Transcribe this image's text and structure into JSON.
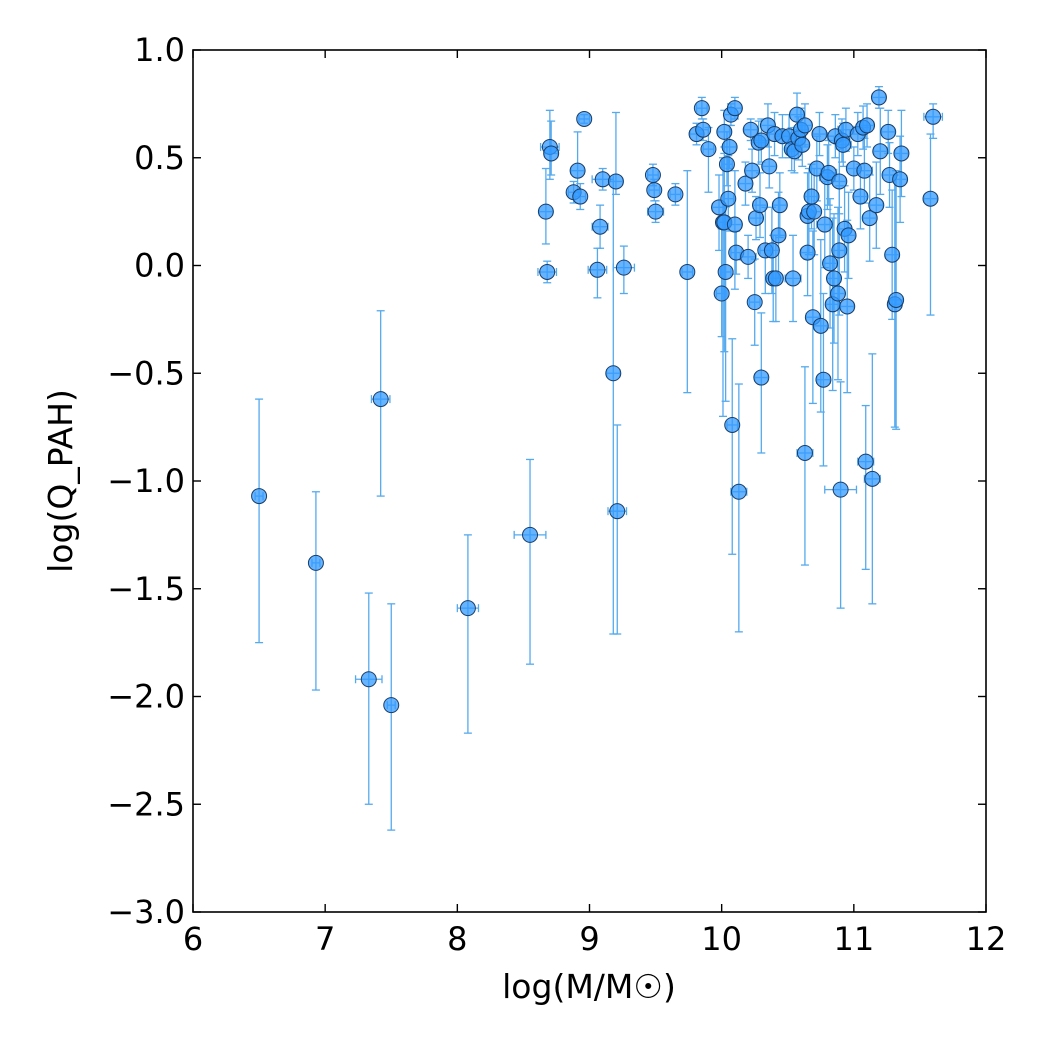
{
  "chart_data": {
    "type": "scatter",
    "xlabel": "log(M/M☉)",
    "ylabel": "log(Q_PAH)",
    "xlim": [
      6,
      12
    ],
    "ylim": [
      -3.0,
      1.0
    ],
    "x_ticks": [
      6,
      7,
      8,
      9,
      10,
      11,
      12
    ],
    "x_tick_labels": [
      "6",
      "7",
      "8",
      "9",
      "10",
      "11",
      "12"
    ],
    "y_ticks": [
      -3.0,
      -2.5,
      -2.0,
      -1.5,
      -1.0,
      -0.5,
      0.0,
      0.5,
      1.0
    ],
    "y_tick_labels": [
      "−3.0",
      "−2.5",
      "−2.0",
      "−1.5",
      "−1.0",
      "−0.5",
      "0.0",
      "0.5",
      "1.0"
    ],
    "grid": false,
    "colors": {
      "marker": "#3399ff",
      "errorbar": "#55aaee",
      "edge": "#1a3d66"
    },
    "points": [
      {
        "x": 6.5,
        "y": -1.07,
        "ylo": 0.68,
        "yhi": 0.45,
        "xe": 0.03
      },
      {
        "x": 6.93,
        "y": -1.38,
        "ylo": 0.59,
        "yhi": 0.33,
        "xe": 0.03
      },
      {
        "x": 7.33,
        "y": -1.92,
        "ylo": 0.58,
        "yhi": 0.4,
        "xe": 0.1
      },
      {
        "x": 7.42,
        "y": -0.62,
        "ylo": 0.45,
        "yhi": 0.41,
        "xe": 0.07
      },
      {
        "x": 7.5,
        "y": -2.04,
        "ylo": 0.58,
        "yhi": 0.47,
        "xe": 0.03
      },
      {
        "x": 8.08,
        "y": -1.59,
        "ylo": 0.58,
        "yhi": 0.34,
        "xe": 0.08
      },
      {
        "x": 8.55,
        "y": -1.25,
        "ylo": 0.6,
        "yhi": 0.35,
        "xe": 0.12
      },
      {
        "x": 8.67,
        "y": 0.25,
        "ylo": 0.15,
        "yhi": 0.2,
        "xe": 0.05
      },
      {
        "x": 8.68,
        "y": -0.03,
        "ylo": 0.05,
        "yhi": 0.05,
        "xe": 0.07
      },
      {
        "x": 8.7,
        "y": 0.55,
        "ylo": 0.15,
        "yhi": 0.17,
        "xe": 0.07
      },
      {
        "x": 8.71,
        "y": 0.52,
        "ylo": 0.1,
        "yhi": 0.15,
        "xe": 0.05
      },
      {
        "x": 8.88,
        "y": 0.34,
        "ylo": 0.05,
        "yhi": 0.05,
        "xe": 0.04
      },
      {
        "x": 8.91,
        "y": 0.44,
        "ylo": 0.1,
        "yhi": 0.18,
        "xe": 0.05
      },
      {
        "x": 8.93,
        "y": 0.32,
        "ylo": 0.06,
        "yhi": 0.06,
        "xe": 0.04
      },
      {
        "x": 8.96,
        "y": 0.68,
        "ylo": 0.02,
        "yhi": 0.02,
        "xe": 0.04
      },
      {
        "x": 9.06,
        "y": -0.02,
        "ylo": 0.13,
        "yhi": 0.1,
        "xe": 0.07
      },
      {
        "x": 9.08,
        "y": 0.18,
        "ylo": 0.1,
        "yhi": 0.1,
        "xe": 0.06
      },
      {
        "x": 9.1,
        "y": 0.4,
        "ylo": 0.05,
        "yhi": 0.05,
        "xe": 0.08
      },
      {
        "x": 9.18,
        "y": -0.5,
        "ylo": 1.21,
        "yhi": 0.89,
        "xe": 0.05
      },
      {
        "x": 9.2,
        "y": 0.39,
        "ylo": 0.06,
        "yhi": 0.32,
        "xe": 0.05
      },
      {
        "x": 9.21,
        "y": -1.14,
        "ylo": 0.57,
        "yhi": 0.4,
        "xe": 0.07
      },
      {
        "x": 9.26,
        "y": -0.01,
        "ylo": 0.12,
        "yhi": 0.1,
        "xe": 0.08
      },
      {
        "x": 9.48,
        "y": 0.42,
        "ylo": 0.05,
        "yhi": 0.05,
        "xe": 0.04
      },
      {
        "x": 9.49,
        "y": 0.35,
        "ylo": 0.05,
        "yhi": 0.05,
        "xe": 0.04
      },
      {
        "x": 9.5,
        "y": 0.25,
        "ylo": 0.05,
        "yhi": 0.05,
        "xe": 0.06
      },
      {
        "x": 9.65,
        "y": 0.33,
        "ylo": 0.05,
        "yhi": 0.05,
        "xe": 0.04
      },
      {
        "x": 9.74,
        "y": -0.03,
        "ylo": 0.56,
        "yhi": 0.47,
        "xe": 0.04
      },
      {
        "x": 9.81,
        "y": 0.61,
        "ylo": 0.05,
        "yhi": 0.05,
        "xe": 0.05
      },
      {
        "x": 9.85,
        "y": 0.73,
        "ylo": 0.05,
        "yhi": 0.05,
        "xe": 0.04
      },
      {
        "x": 9.86,
        "y": 0.63,
        "ylo": 0.05,
        "yhi": 0.05,
        "xe": 0.04
      },
      {
        "x": 9.9,
        "y": 0.54,
        "ylo": 0.2,
        "yhi": 0.1,
        "xe": 0.04
      },
      {
        "x": 9.98,
        "y": 0.27,
        "ylo": 0.2,
        "yhi": 0.15,
        "xe": 0.05
      },
      {
        "x": 10.0,
        "y": -0.13,
        "ylo": 0.2,
        "yhi": 0.3,
        "xe": 0.04
      },
      {
        "x": 10.01,
        "y": 0.2,
        "ylo": 0.9,
        "yhi": 0.3,
        "xe": 0.05
      },
      {
        "x": 10.02,
        "y": 0.62,
        "ylo": 0.1,
        "yhi": 0.1,
        "xe": 0.05
      },
      {
        "x": 10.02,
        "y": 0.2,
        "ylo": 0.6,
        "yhi": 0.35,
        "xe": 0.05
      },
      {
        "x": 10.03,
        "y": -0.03,
        "ylo": 0.6,
        "yhi": 0.3,
        "xe": 0.04
      },
      {
        "x": 10.04,
        "y": 0.47,
        "ylo": 0.1,
        "yhi": 0.15,
        "xe": 0.04
      },
      {
        "x": 10.05,
        "y": 0.31,
        "ylo": 0.15,
        "yhi": 0.2,
        "xe": 0.04
      },
      {
        "x": 10.06,
        "y": 0.55,
        "ylo": 0.1,
        "yhi": 0.1,
        "xe": 0.05
      },
      {
        "x": 10.07,
        "y": 0.7,
        "ylo": 0.05,
        "yhi": 0.05,
        "xe": 0.05
      },
      {
        "x": 10.08,
        "y": -0.74,
        "ylo": 0.6,
        "yhi": 0.4,
        "xe": 0.04
      },
      {
        "x": 10.1,
        "y": 0.73,
        "ylo": 0.05,
        "yhi": 0.05,
        "xe": 0.05
      },
      {
        "x": 10.1,
        "y": 0.19,
        "ylo": 0.3,
        "yhi": 0.25,
        "xe": 0.05
      },
      {
        "x": 10.11,
        "y": 0.06,
        "ylo": 0.1,
        "yhi": 0.1,
        "xe": 0.04
      },
      {
        "x": 10.13,
        "y": -1.05,
        "ylo": 0.65,
        "yhi": 0.5,
        "xe": 0.06
      },
      {
        "x": 10.18,
        "y": 0.38,
        "ylo": 0.1,
        "yhi": 0.1,
        "xe": 0.05
      },
      {
        "x": 10.2,
        "y": 0.04,
        "ylo": 0.1,
        "yhi": 0.1,
        "xe": 0.06
      },
      {
        "x": 10.22,
        "y": 0.63,
        "ylo": 0.05,
        "yhi": 0.05,
        "xe": 0.05
      },
      {
        "x": 10.23,
        "y": 0.44,
        "ylo": 0.1,
        "yhi": 0.1,
        "xe": 0.05
      },
      {
        "x": 10.25,
        "y": -0.17,
        "ylo": 0.2,
        "yhi": 0.2,
        "xe": 0.04
      },
      {
        "x": 10.26,
        "y": 0.22,
        "ylo": 0.1,
        "yhi": 0.1,
        "xe": 0.05
      },
      {
        "x": 10.28,
        "y": 0.57,
        "ylo": 0.1,
        "yhi": 0.1,
        "xe": 0.05
      },
      {
        "x": 10.29,
        "y": 0.28,
        "ylo": 0.15,
        "yhi": 0.15,
        "xe": 0.05
      },
      {
        "x": 10.3,
        "y": -0.52,
        "ylo": 0.35,
        "yhi": 0.3,
        "xe": 0.05
      },
      {
        "x": 10.3,
        "y": 0.58,
        "ylo": 0.1,
        "yhi": 0.1,
        "xe": 0.05
      },
      {
        "x": 10.33,
        "y": 0.07,
        "ylo": 0.2,
        "yhi": 0.2,
        "xe": 0.04
      },
      {
        "x": 10.35,
        "y": 0.65,
        "ylo": 0.1,
        "yhi": 0.1,
        "xe": 0.05
      },
      {
        "x": 10.36,
        "y": 0.46,
        "ylo": 0.1,
        "yhi": 0.15,
        "xe": 0.05
      },
      {
        "x": 10.38,
        "y": 0.07,
        "ylo": 0.2,
        "yhi": 0.2,
        "xe": 0.05
      },
      {
        "x": 10.39,
        "y": -0.06,
        "ylo": 0.2,
        "yhi": 0.2,
        "xe": 0.05
      },
      {
        "x": 10.4,
        "y": 0.61,
        "ylo": 0.1,
        "yhi": 0.1,
        "xe": 0.05
      },
      {
        "x": 10.41,
        "y": -0.06,
        "ylo": 0.2,
        "yhi": 0.2,
        "xe": 0.05
      },
      {
        "x": 10.43,
        "y": 0.14,
        "ylo": 0.2,
        "yhi": 0.2,
        "xe": 0.05
      },
      {
        "x": 10.44,
        "y": 0.28,
        "ylo": 0.15,
        "yhi": 0.15,
        "xe": 0.05
      },
      {
        "x": 10.46,
        "y": 0.6,
        "ylo": 0.1,
        "yhi": 0.1,
        "xe": 0.06
      },
      {
        "x": 10.51,
        "y": 0.6,
        "ylo": 0.1,
        "yhi": 0.1,
        "xe": 0.05
      },
      {
        "x": 10.53,
        "y": 0.54,
        "ylo": 0.1,
        "yhi": 0.1,
        "xe": 0.05
      },
      {
        "x": 10.54,
        "y": -0.06,
        "ylo": 0.2,
        "yhi": 0.2,
        "xe": 0.06
      },
      {
        "x": 10.55,
        "y": 0.53,
        "ylo": 0.1,
        "yhi": 0.1,
        "xe": 0.06
      },
      {
        "x": 10.57,
        "y": 0.7,
        "ylo": 0.1,
        "yhi": 0.1,
        "xe": 0.05
      },
      {
        "x": 10.58,
        "y": 0.59,
        "ylo": 0.1,
        "yhi": 0.1,
        "xe": 0.05
      },
      {
        "x": 10.6,
        "y": 0.63,
        "ylo": 0.1,
        "yhi": 0.1,
        "xe": 0.05
      },
      {
        "x": 10.61,
        "y": 0.56,
        "ylo": 0.1,
        "yhi": 0.1,
        "xe": 0.05
      },
      {
        "x": 10.63,
        "y": -0.87,
        "ylo": 0.52,
        "yhi": 0.4,
        "xe": 0.06
      },
      {
        "x": 10.63,
        "y": 0.65,
        "ylo": 0.1,
        "yhi": 0.1,
        "xe": 0.05
      },
      {
        "x": 10.65,
        "y": 0.23,
        "ylo": 0.2,
        "yhi": 0.2,
        "xe": 0.05
      },
      {
        "x": 10.65,
        "y": 0.06,
        "ylo": 0.2,
        "yhi": 0.2,
        "xe": 0.05
      },
      {
        "x": 10.66,
        "y": 0.25,
        "ylo": 0.2,
        "yhi": 0.2,
        "xe": 0.05
      },
      {
        "x": 10.68,
        "y": 0.32,
        "ylo": 0.15,
        "yhi": 0.15,
        "xe": 0.05
      },
      {
        "x": 10.69,
        "y": -0.24,
        "ylo": 0.4,
        "yhi": 0.4,
        "xe": 0.05
      },
      {
        "x": 10.7,
        "y": 0.25,
        "ylo": 0.2,
        "yhi": 0.2,
        "xe": 0.05
      },
      {
        "x": 10.72,
        "y": 0.45,
        "ylo": 0.15,
        "yhi": 0.15,
        "xe": 0.05
      },
      {
        "x": 10.74,
        "y": 0.61,
        "ylo": 0.1,
        "yhi": 0.1,
        "xe": 0.05
      },
      {
        "x": 10.75,
        "y": -0.28,
        "ylo": 0.4,
        "yhi": 0.4,
        "xe": 0.05
      },
      {
        "x": 10.77,
        "y": -0.53,
        "ylo": 0.4,
        "yhi": 0.4,
        "xe": 0.05
      },
      {
        "x": 10.78,
        "y": 0.19,
        "ylo": 0.2,
        "yhi": 0.2,
        "xe": 0.06
      },
      {
        "x": 10.8,
        "y": 0.41,
        "ylo": 0.15,
        "yhi": 0.15,
        "xe": 0.06
      },
      {
        "x": 10.81,
        "y": 0.43,
        "ylo": 0.15,
        "yhi": 0.15,
        "xe": 0.06
      },
      {
        "x": 10.82,
        "y": 0.01,
        "ylo": 0.3,
        "yhi": 0.3,
        "xe": 0.05
      },
      {
        "x": 10.84,
        "y": -0.18,
        "ylo": 0.4,
        "yhi": 0.4,
        "xe": 0.05
      },
      {
        "x": 10.85,
        "y": -0.06,
        "ylo": 0.3,
        "yhi": 0.3,
        "xe": 0.05
      },
      {
        "x": 10.86,
        "y": 0.6,
        "ylo": 0.1,
        "yhi": 0.1,
        "xe": 0.06
      },
      {
        "x": 10.88,
        "y": -0.13,
        "ylo": 0.4,
        "yhi": 0.4,
        "xe": 0.05
      },
      {
        "x": 10.89,
        "y": 0.07,
        "ylo": 0.3,
        "yhi": 0.3,
        "xe": 0.05
      },
      {
        "x": 10.89,
        "y": 0.39,
        "ylo": 0.15,
        "yhi": 0.15,
        "xe": 0.05
      },
      {
        "x": 10.9,
        "y": -1.04,
        "ylo": 0.55,
        "yhi": 0.5,
        "xe": 0.12
      },
      {
        "x": 10.91,
        "y": 0.58,
        "ylo": 0.1,
        "yhi": 0.1,
        "xe": 0.06
      },
      {
        "x": 10.92,
        "y": 0.56,
        "ylo": 0.1,
        "yhi": 0.1,
        "xe": 0.06
      },
      {
        "x": 10.93,
        "y": 0.17,
        "ylo": 0.2,
        "yhi": 0.2,
        "xe": 0.05
      },
      {
        "x": 10.94,
        "y": 0.63,
        "ylo": 0.1,
        "yhi": 0.1,
        "xe": 0.06
      },
      {
        "x": 10.95,
        "y": -0.19,
        "ylo": 0.4,
        "yhi": 0.4,
        "xe": 0.05
      },
      {
        "x": 10.96,
        "y": 0.14,
        "ylo": 0.2,
        "yhi": 0.2,
        "xe": 0.05
      },
      {
        "x": 11.0,
        "y": 0.45,
        "ylo": 0.1,
        "yhi": 0.1,
        "xe": 0.05
      },
      {
        "x": 11.03,
        "y": 0.61,
        "ylo": 0.1,
        "yhi": 0.1,
        "xe": 0.06
      },
      {
        "x": 11.05,
        "y": 0.32,
        "ylo": 0.15,
        "yhi": 0.15,
        "xe": 0.05
      },
      {
        "x": 11.07,
        "y": 0.64,
        "ylo": 0.1,
        "yhi": 0.1,
        "xe": 0.05
      },
      {
        "x": 11.08,
        "y": 0.44,
        "ylo": 0.15,
        "yhi": 0.15,
        "xe": 0.06
      },
      {
        "x": 11.09,
        "y": -0.91,
        "ylo": 0.5,
        "yhi": 0.26,
        "xe": 0.06
      },
      {
        "x": 11.1,
        "y": 0.65,
        "ylo": 0.1,
        "yhi": 0.1,
        "xe": 0.05
      },
      {
        "x": 11.12,
        "y": 0.22,
        "ylo": 0.2,
        "yhi": 0.2,
        "xe": 0.05
      },
      {
        "x": 11.14,
        "y": -0.99,
        "ylo": 0.58,
        "yhi": 0.58,
        "xe": 0.06
      },
      {
        "x": 11.17,
        "y": 0.28,
        "ylo": 0.2,
        "yhi": 0.2,
        "xe": 0.05
      },
      {
        "x": 11.19,
        "y": 0.78,
        "ylo": 0.05,
        "yhi": 0.05,
        "xe": 0.05
      },
      {
        "x": 11.2,
        "y": 0.53,
        "ylo": 0.2,
        "yhi": 0.2,
        "xe": 0.05
      },
      {
        "x": 11.26,
        "y": 0.62,
        "ylo": 0.1,
        "yhi": 0.1,
        "xe": 0.05
      },
      {
        "x": 11.27,
        "y": 0.42,
        "ylo": 0.15,
        "yhi": 0.15,
        "xe": 0.05
      },
      {
        "x": 11.29,
        "y": 0.05,
        "ylo": 0.3,
        "yhi": 0.3,
        "xe": 0.05
      },
      {
        "x": 11.31,
        "y": -0.18,
        "ylo": 0.57,
        "yhi": 0.6,
        "xe": 0.05
      },
      {
        "x": 11.32,
        "y": -0.16,
        "ylo": 0.6,
        "yhi": 0.6,
        "xe": 0.05
      },
      {
        "x": 11.35,
        "y": 0.4,
        "ylo": 0.2,
        "yhi": 0.2,
        "xe": 0.05
      },
      {
        "x": 11.36,
        "y": 0.52,
        "ylo": 0.2,
        "yhi": 0.2,
        "xe": 0.05
      },
      {
        "x": 11.58,
        "y": 0.31,
        "ylo": 0.54,
        "yhi": 0.3,
        "xe": 0.05
      },
      {
        "x": 11.6,
        "y": 0.69,
        "ylo": 0.1,
        "yhi": 0.06,
        "xe": 0.07
      }
    ]
  }
}
